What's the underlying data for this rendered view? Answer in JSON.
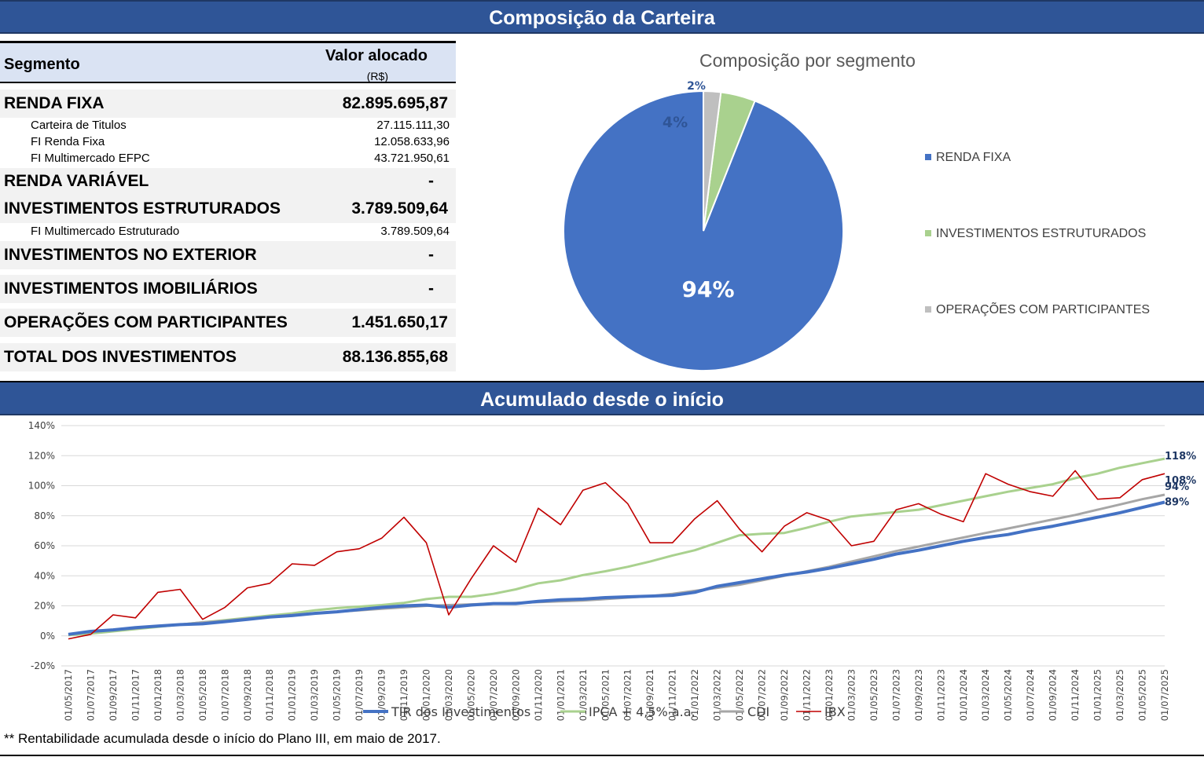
{
  "header": {
    "title": "Composição da Carteira"
  },
  "table": {
    "col_segment": "Segmento",
    "col_value": "Valor alocado",
    "col_unit": "(R$)",
    "renda_fixa": {
      "label": "RENDA FIXA",
      "value": "82.895.695,87"
    },
    "carteira_titulos": {
      "label": "Carteira de Titulos",
      "value": "27.115.111,30"
    },
    "fi_renda_fixa": {
      "label": "FI Renda Fixa",
      "value": "12.058.633,96"
    },
    "fi_multimercado_efpc": {
      "label": "FI Multimercado EFPC",
      "value": "43.721.950,61"
    },
    "renda_variavel": {
      "label": "RENDA VARIÁVEL",
      "value": "-"
    },
    "inv_estruturados": {
      "label": "INVESTIMENTOS ESTRUTURADOS",
      "value": "3.789.509,64"
    },
    "fi_multimercado_estruturado": {
      "label": "FI Multimercado Estruturado",
      "value": "3.789.509,64"
    },
    "inv_exterior": {
      "label": "INVESTIMENTOS NO EXTERIOR",
      "value": "-"
    },
    "inv_imobiliarios": {
      "label": "INVESTIMENTOS IMOBILIÁRIOS",
      "value": "-"
    },
    "op_participantes": {
      "label": "OPERAÇÕES COM PARTICIPANTES",
      "value": "1.451.650,17"
    },
    "total": {
      "label": "TOTAL DOS INVESTIMENTOS",
      "value": "88.136.855,68"
    }
  },
  "section2": {
    "title": "Acumulado desde o início"
  },
  "footnote": "** Rentabilidade acumulada desde o início do Plano III, em maio de 2017.",
  "chart_data": [
    {
      "type": "pie",
      "title": "Composição por segmento",
      "labels": [
        "RENDA FIXA",
        "INVESTIMENTOS ESTRUTURADOS",
        "OPERAÇÕES COM PARTICIPANTES"
      ],
      "values": [
        94,
        4,
        2
      ],
      "data_labels": [
        "94%",
        "4%",
        "2%"
      ],
      "colors": [
        "#4472c4",
        "#a9d18e",
        "#bfbfbf"
      ],
      "legend": "right"
    },
    {
      "type": "line",
      "x": [
        "01/05/2017",
        "01/07/2017",
        "01/09/2017",
        "01/11/2017",
        "01/01/2018",
        "01/03/2018",
        "01/05/2018",
        "01/07/2018",
        "01/09/2018",
        "01/11/2018",
        "01/01/2019",
        "01/03/2019",
        "01/05/2019",
        "01/07/2019",
        "01/09/2019",
        "01/11/2019",
        "01/01/2020",
        "01/03/2020",
        "01/05/2020",
        "01/07/2020",
        "01/09/2020",
        "01/11/2020",
        "01/01/2021",
        "01/03/2021",
        "01/05/2021",
        "01/07/2021",
        "01/09/2021",
        "01/11/2021",
        "01/01/2022",
        "01/03/2022",
        "01/05/2022",
        "01/07/2022",
        "01/09/2022",
        "01/11/2022",
        "01/01/2023",
        "01/03/2023",
        "01/05/2023",
        "01/07/2023",
        "01/09/2023",
        "01/11/2023",
        "01/01/2024",
        "01/03/2024",
        "01/05/2024",
        "01/07/2024",
        "01/09/2024",
        "01/11/2024",
        "01/01/2025",
        "01/03/2025",
        "01/05/2025",
        "01/07/2025"
      ],
      "ylim": [
        -20,
        140
      ],
      "yticks": [
        "-20%",
        "0%",
        "20%",
        "40%",
        "60%",
        "80%",
        "100%",
        "120%",
        "140%"
      ],
      "grid": true,
      "legend": "bottom",
      "series": [
        {
          "name": "TIR dos Investimentos",
          "color": "#4472c4",
          "end_label": "89%",
          "values": [
            1,
            3,
            4,
            5.5,
            6.5,
            7.5,
            8,
            9.5,
            11,
            12.5,
            13.5,
            15,
            16,
            17.5,
            19,
            20,
            20.5,
            19,
            20.5,
            21.5,
            21.5,
            23,
            24,
            24.5,
            25.5,
            26,
            26.5,
            27,
            29,
            33,
            35.5,
            38,
            40.5,
            42.5,
            45,
            48,
            51,
            54.5,
            57,
            60,
            63,
            65.5,
            67.5,
            70.5,
            73,
            76,
            79,
            82,
            85.5,
            89
          ]
        },
        {
          "name": "IPCA + 4,5% a.a.",
          "color": "#a9d18e",
          "end_label": "118%",
          "values": [
            0.5,
            1.5,
            3,
            4.5,
            6,
            7.5,
            9,
            10.5,
            12,
            13.5,
            15,
            17,
            18.5,
            19.5,
            20.5,
            22,
            24.5,
            26,
            26,
            28,
            31,
            35,
            37,
            40.5,
            43,
            46,
            49.5,
            53.5,
            57,
            62,
            67,
            68,
            68.5,
            72,
            76,
            79.5,
            81,
            82.5,
            84,
            87,
            90,
            93,
            96,
            98.5,
            101,
            105,
            108,
            112,
            115,
            118
          ]
        },
        {
          "name": "CDI",
          "color": "#a6a6a6",
          "end_label": "94%",
          "values": [
            1,
            2.5,
            4,
            5,
            6.5,
            7.5,
            9,
            10,
            11.5,
            12.5,
            14,
            15,
            16,
            17,
            18,
            19,
            20,
            20.5,
            21,
            21.5,
            22,
            22.5,
            23,
            23.5,
            24.5,
            25.5,
            26.5,
            28,
            30,
            32,
            34,
            37,
            40,
            43,
            46,
            49.5,
            53,
            56.5,
            59.5,
            62.5,
            65.5,
            68.5,
            71.5,
            74.5,
            77.5,
            80.5,
            84,
            87.5,
            91,
            94
          ]
        },
        {
          "name": "IBX",
          "color": "#c00000",
          "end_label": "108%",
          "values": [
            -2,
            1,
            14,
            12,
            29,
            31,
            11,
            19,
            32,
            35,
            48,
            47,
            56,
            58,
            65,
            79,
            62,
            14,
            38,
            60,
            49,
            85,
            74,
            97,
            102,
            88,
            62,
            62,
            78,
            90,
            71,
            56,
            73,
            82,
            77,
            60,
            63,
            84,
            88,
            81,
            76,
            108,
            101,
            96,
            93,
            110,
            91,
            92,
            104,
            108
          ]
        }
      ]
    }
  ]
}
